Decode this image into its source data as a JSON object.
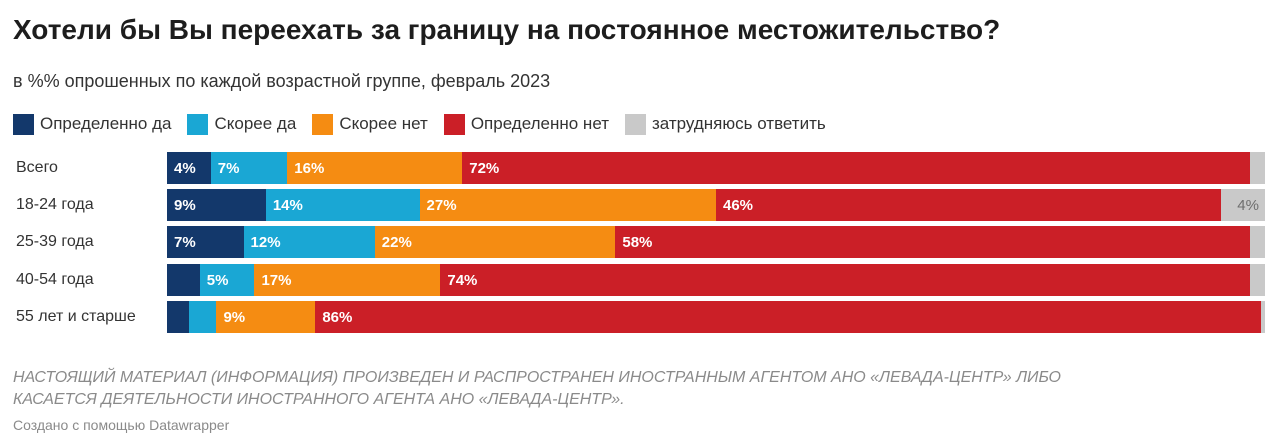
{
  "header": {
    "title": "Хотели бы Вы переехать за границу на постоянное местожительство?",
    "subtitle": "в %% опрошенных по каждой возрастной группе, февраль 2023"
  },
  "footer": {
    "note_line1": "НАСТОЯЩИЙ МАТЕРИАЛ (ИНФОРМАЦИЯ) ПРОИЗВЕДЕН И РАСПРОСТРАНЕН ИНОСТРАННЫМ АГЕНТОМ АНО «ЛЕВАДА-ЦЕНТР» ЛИБО",
    "note_line2": "КАСАЕТСЯ ДЕЯТЕЛЬНОСТИ ИНОСТРАННОГО АГЕНТА АНО «ЛЕВАДА-ЦЕНТР».",
    "credit": "Создано с помощью Datawrapper"
  },
  "chart_data": {
    "type": "bar",
    "orientation": "horizontal",
    "stacked": true,
    "normalized_to": 100,
    "title": "Хотели бы Вы переехать за границу на постоянное местожительство?",
    "subtitle": "в %% опрошенных по каждой возрастной группе, февраль 2023",
    "categories": [
      "Всего",
      "18-24 года",
      "25-39 года",
      "40-54 года",
      "55 лет и старше"
    ],
    "legend_position": "top-left",
    "series": [
      {
        "name": "Определенно да",
        "color": "#13386b",
        "values": [
          4,
          9,
          7,
          3,
          2
        ],
        "labels": [
          "4%",
          "9%",
          "7%",
          "",
          ""
        ]
      },
      {
        "name": "Скорее да",
        "color": "#1aa7d4",
        "values": [
          7,
          14,
          12,
          5,
          2.5
        ],
        "labels": [
          "7%",
          "14%",
          "12%",
          "5%",
          ""
        ]
      },
      {
        "name": "Скорее нет",
        "color": "#f58c12",
        "values": [
          16,
          27,
          22,
          17,
          9
        ],
        "labels": [
          "16%",
          "27%",
          "22%",
          "17%",
          "9%"
        ]
      },
      {
        "name": "Определенно нет",
        "color": "#cb1f27",
        "values": [
          72,
          46,
          58,
          74,
          86
        ],
        "labels": [
          "72%",
          "46%",
          "58%",
          "74%",
          "86%"
        ]
      },
      {
        "name": "затрудняюсь ответить",
        "color": "#c9c9c9",
        "values": [
          1.4,
          4,
          1.4,
          1.4,
          0.4
        ],
        "labels": [
          "",
          "4%",
          "",
          "",
          ""
        ]
      }
    ]
  }
}
